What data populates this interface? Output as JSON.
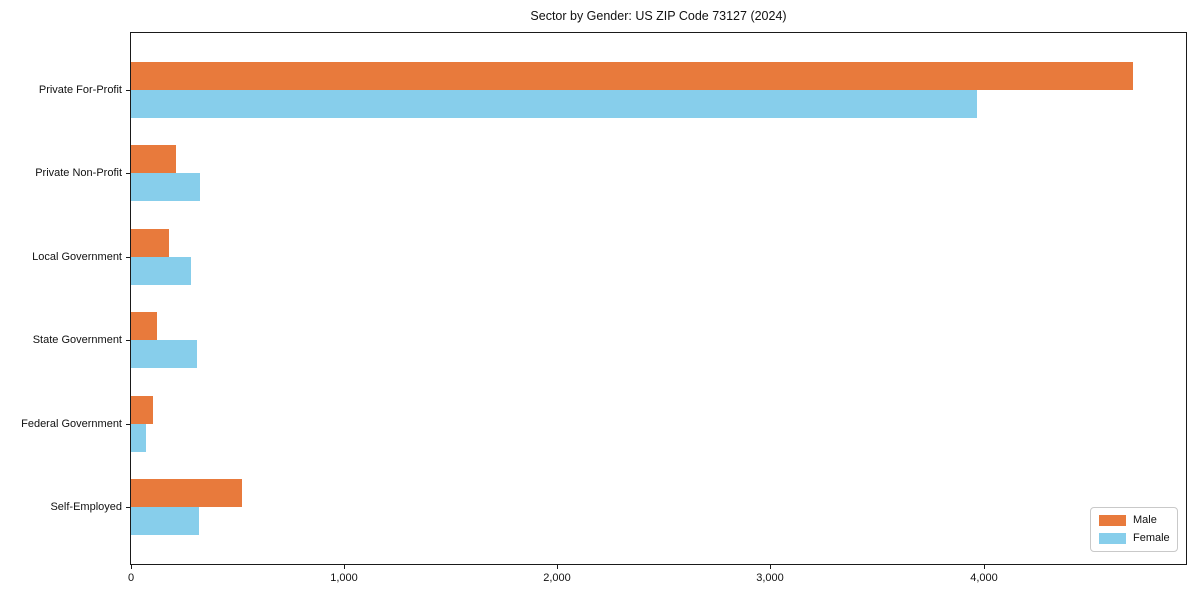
{
  "chart_data": {
    "type": "bar",
    "orientation": "horizontal",
    "title": "Sector by Gender: US ZIP Code 73127 (2024)",
    "categories": [
      "Private For-Profit",
      "Private Non-Profit",
      "Local Government",
      "State Government",
      "Federal Government",
      "Self-Employed"
    ],
    "series": [
      {
        "name": "Male",
        "color": "#e87a3c",
        "values": [
          4700,
          210,
          180,
          120,
          105,
          520
        ]
      },
      {
        "name": "Female",
        "color": "#87ceeb",
        "values": [
          3970,
          325,
          280,
          310,
          70,
          320
        ]
      }
    ],
    "xlim": [
      0,
      4950
    ],
    "x_ticks": [
      0,
      1000,
      2000,
      3000,
      4000
    ],
    "x_tick_labels": [
      "0",
      "1,000",
      "2,000",
      "3,000",
      "4,000"
    ],
    "ylabel": "",
    "xlabel": "",
    "grid": false,
    "legend": {
      "position": "lower right",
      "entries": [
        "Male",
        "Female"
      ]
    }
  }
}
